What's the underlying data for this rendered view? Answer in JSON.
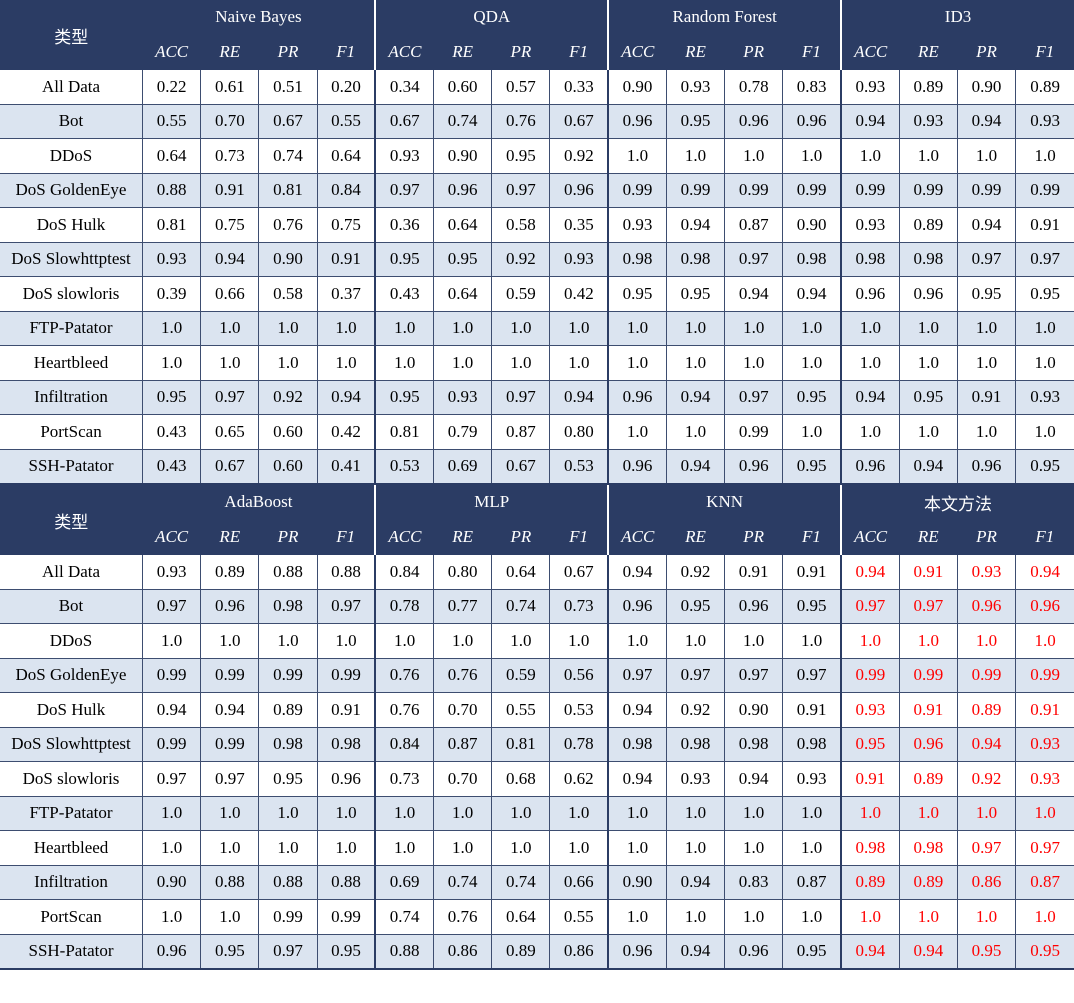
{
  "colors": {
    "header_bg": "#2b3c64",
    "header_text": "#ffffff",
    "row_alt_bg": "#dbe4f0",
    "highlight_text": "#ff0000"
  },
  "tables": [
    {
      "type_label": "类型",
      "metrics": [
        "ACC",
        "RE",
        "PR",
        "F1"
      ],
      "models": [
        "Naive Bayes",
        "QDA",
        "Random Forest",
        "ID3"
      ],
      "highlight_model_index": null,
      "rows": [
        {
          "label": "All Data",
          "values": [
            "0.22",
            "0.61",
            "0.51",
            "0.20",
            "0.34",
            "0.60",
            "0.57",
            "0.33",
            "0.90",
            "0.93",
            "0.78",
            "0.83",
            "0.93",
            "0.89",
            "0.90",
            "0.89"
          ]
        },
        {
          "label": "Bot",
          "values": [
            "0.55",
            "0.70",
            "0.67",
            "0.55",
            "0.67",
            "0.74",
            "0.76",
            "0.67",
            "0.96",
            "0.95",
            "0.96",
            "0.96",
            "0.94",
            "0.93",
            "0.94",
            "0.93"
          ]
        },
        {
          "label": "DDoS",
          "values": [
            "0.64",
            "0.73",
            "0.74",
            "0.64",
            "0.93",
            "0.90",
            "0.95",
            "0.92",
            "1.0",
            "1.0",
            "1.0",
            "1.0",
            "1.0",
            "1.0",
            "1.0",
            "1.0"
          ]
        },
        {
          "label": "DoS GoldenEye",
          "values": [
            "0.88",
            "0.91",
            "0.81",
            "0.84",
            "0.97",
            "0.96",
            "0.97",
            "0.96",
            "0.99",
            "0.99",
            "0.99",
            "0.99",
            "0.99",
            "0.99",
            "0.99",
            "0.99"
          ]
        },
        {
          "label": "DoS Hulk",
          "values": [
            "0.81",
            "0.75",
            "0.76",
            "0.75",
            "0.36",
            "0.64",
            "0.58",
            "0.35",
            "0.93",
            "0.94",
            "0.87",
            "0.90",
            "0.93",
            "0.89",
            "0.94",
            "0.91"
          ]
        },
        {
          "label": "DoS Slowhttptest",
          "values": [
            "0.93",
            "0.94",
            "0.90",
            "0.91",
            "0.95",
            "0.95",
            "0.92",
            "0.93",
            "0.98",
            "0.98",
            "0.97",
            "0.98",
            "0.98",
            "0.98",
            "0.97",
            "0.97"
          ]
        },
        {
          "label": "DoS slowloris",
          "values": [
            "0.39",
            "0.66",
            "0.58",
            "0.37",
            "0.43",
            "0.64",
            "0.59",
            "0.42",
            "0.95",
            "0.95",
            "0.94",
            "0.94",
            "0.96",
            "0.96",
            "0.95",
            "0.95"
          ]
        },
        {
          "label": "FTP-Patator",
          "values": [
            "1.0",
            "1.0",
            "1.0",
            "1.0",
            "1.0",
            "1.0",
            "1.0",
            "1.0",
            "1.0",
            "1.0",
            "1.0",
            "1.0",
            "1.0",
            "1.0",
            "1.0",
            "1.0"
          ]
        },
        {
          "label": "Heartbleed",
          "values": [
            "1.0",
            "1.0",
            "1.0",
            "1.0",
            "1.0",
            "1.0",
            "1.0",
            "1.0",
            "1.0",
            "1.0",
            "1.0",
            "1.0",
            "1.0",
            "1.0",
            "1.0",
            "1.0"
          ]
        },
        {
          "label": "Infiltration",
          "values": [
            "0.95",
            "0.97",
            "0.92",
            "0.94",
            "0.95",
            "0.93",
            "0.97",
            "0.94",
            "0.96",
            "0.94",
            "0.97",
            "0.95",
            "0.94",
            "0.95",
            "0.91",
            "0.93"
          ]
        },
        {
          "label": "PortScan",
          "values": [
            "0.43",
            "0.65",
            "0.60",
            "0.42",
            "0.81",
            "0.79",
            "0.87",
            "0.80",
            "1.0",
            "1.0",
            "0.99",
            "1.0",
            "1.0",
            "1.0",
            "1.0",
            "1.0"
          ]
        },
        {
          "label": "SSH-Patator",
          "values": [
            "0.43",
            "0.67",
            "0.60",
            "0.41",
            "0.53",
            "0.69",
            "0.67",
            "0.53",
            "0.96",
            "0.94",
            "0.96",
            "0.95",
            "0.96",
            "0.94",
            "0.96",
            "0.95"
          ]
        }
      ]
    },
    {
      "type_label": "类型",
      "metrics": [
        "ACC",
        "RE",
        "PR",
        "F1"
      ],
      "models": [
        "AdaBoost",
        "MLP",
        "KNN",
        "本文方法"
      ],
      "highlight_model_index": 3,
      "rows": [
        {
          "label": "All Data",
          "values": [
            "0.93",
            "0.89",
            "0.88",
            "0.88",
            "0.84",
            "0.80",
            "0.64",
            "0.67",
            "0.94",
            "0.92",
            "0.91",
            "0.91",
            "0.94",
            "0.91",
            "0.93",
            "0.94"
          ]
        },
        {
          "label": "Bot",
          "values": [
            "0.97",
            "0.96",
            "0.98",
            "0.97",
            "0.78",
            "0.77",
            "0.74",
            "0.73",
            "0.96",
            "0.95",
            "0.96",
            "0.95",
            "0.97",
            "0.97",
            "0.96",
            "0.96"
          ]
        },
        {
          "label": "DDoS",
          "values": [
            "1.0",
            "1.0",
            "1.0",
            "1.0",
            "1.0",
            "1.0",
            "1.0",
            "1.0",
            "1.0",
            "1.0",
            "1.0",
            "1.0",
            "1.0",
            "1.0",
            "1.0",
            "1.0"
          ]
        },
        {
          "label": "DoS GoldenEye",
          "values": [
            "0.99",
            "0.99",
            "0.99",
            "0.99",
            "0.76",
            "0.76",
            "0.59",
            "0.56",
            "0.97",
            "0.97",
            "0.97",
            "0.97",
            "0.99",
            "0.99",
            "0.99",
            "0.99"
          ]
        },
        {
          "label": "DoS Hulk",
          "values": [
            "0.94",
            "0.94",
            "0.89",
            "0.91",
            "0.76",
            "0.70",
            "0.55",
            "0.53",
            "0.94",
            "0.92",
            "0.90",
            "0.91",
            "0.93",
            "0.91",
            "0.89",
            "0.91"
          ]
        },
        {
          "label": "DoS Slowhttptest",
          "values": [
            "0.99",
            "0.99",
            "0.98",
            "0.98",
            "0.84",
            "0.87",
            "0.81",
            "0.78",
            "0.98",
            "0.98",
            "0.98",
            "0.98",
            "0.95",
            "0.96",
            "0.94",
            "0.93"
          ]
        },
        {
          "label": "DoS slowloris",
          "values": [
            "0.97",
            "0.97",
            "0.95",
            "0.96",
            "0.73",
            "0.70",
            "0.68",
            "0.62",
            "0.94",
            "0.93",
            "0.94",
            "0.93",
            "0.91",
            "0.89",
            "0.92",
            "0.93"
          ]
        },
        {
          "label": "FTP-Patator",
          "values": [
            "1.0",
            "1.0",
            "1.0",
            "1.0",
            "1.0",
            "1.0",
            "1.0",
            "1.0",
            "1.0",
            "1.0",
            "1.0",
            "1.0",
            "1.0",
            "1.0",
            "1.0",
            "1.0"
          ]
        },
        {
          "label": "Heartbleed",
          "values": [
            "1.0",
            "1.0",
            "1.0",
            "1.0",
            "1.0",
            "1.0",
            "1.0",
            "1.0",
            "1.0",
            "1.0",
            "1.0",
            "1.0",
            "0.98",
            "0.98",
            "0.97",
            "0.97"
          ]
        },
        {
          "label": "Infiltration",
          "values": [
            "0.90",
            "0.88",
            "0.88",
            "0.88",
            "0.69",
            "0.74",
            "0.74",
            "0.66",
            "0.90",
            "0.94",
            "0.83",
            "0.87",
            "0.89",
            "0.89",
            "0.86",
            "0.87"
          ]
        },
        {
          "label": "PortScan",
          "values": [
            "1.0",
            "1.0",
            "0.99",
            "0.99",
            "0.74",
            "0.76",
            "0.64",
            "0.55",
            "1.0",
            "1.0",
            "1.0",
            "1.0",
            "1.0",
            "1.0",
            "1.0",
            "1.0"
          ]
        },
        {
          "label": "SSH-Patator",
          "values": [
            "0.96",
            "0.95",
            "0.97",
            "0.95",
            "0.88",
            "0.86",
            "0.89",
            "0.86",
            "0.96",
            "0.94",
            "0.96",
            "0.95",
            "0.94",
            "0.94",
            "0.95",
            "0.95"
          ]
        }
      ]
    }
  ]
}
